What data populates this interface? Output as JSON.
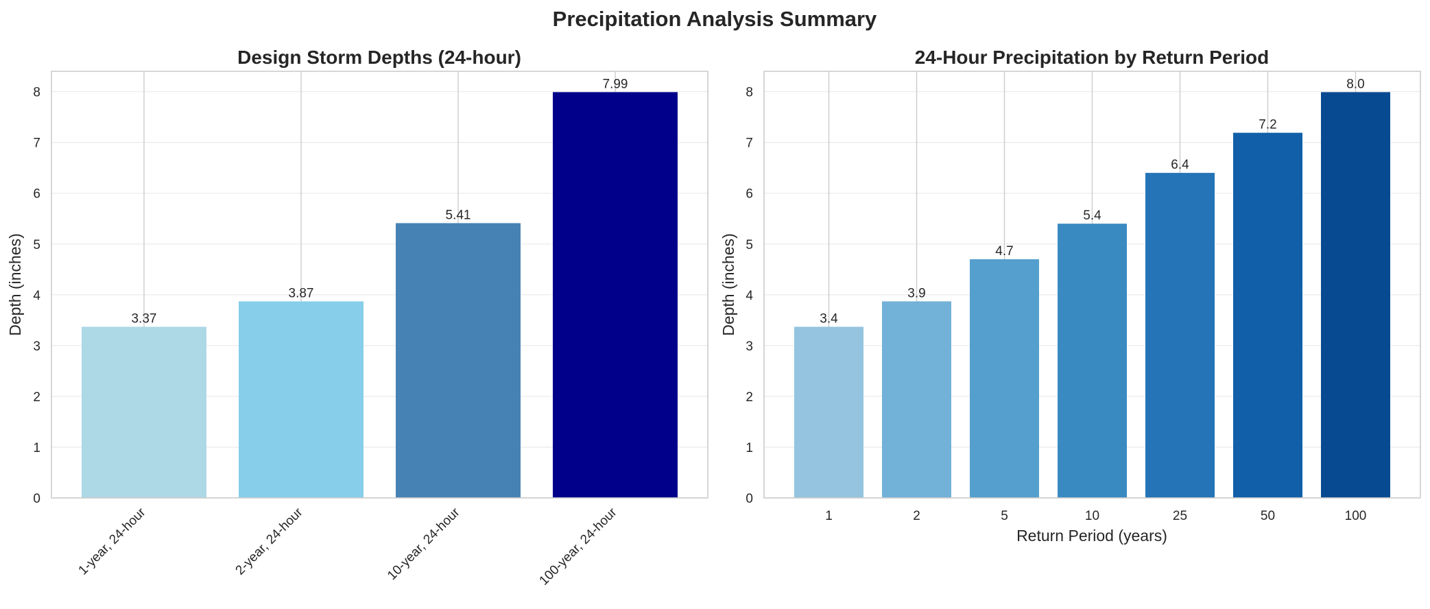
{
  "figure_title": "Precipitation Analysis Summary",
  "chart_data": [
    {
      "type": "bar",
      "title": "Design Storm Depths (24-hour)",
      "xlabel": "",
      "ylabel": "Depth (inches)",
      "categories": [
        "1-year, 24-hour",
        "2-year, 24-hour",
        "10-year, 24-hour",
        "100-year, 24-hour"
      ],
      "values": [
        3.37,
        3.87,
        5.41,
        7.99
      ],
      "value_labels": [
        "3.37",
        "3.87",
        "5.41",
        "7.99"
      ],
      "colors": [
        "#add8e6",
        "#87ceeb",
        "#4682b4",
        "#00008b"
      ],
      "ylim": [
        0,
        8.4
      ],
      "yticks": [
        0,
        1,
        2,
        3,
        4,
        5,
        6,
        7,
        8
      ],
      "grid": true,
      "xtick_rotation": 45
    },
    {
      "type": "bar",
      "title": "24-Hour Precipitation by Return Period",
      "xlabel": "Return Period (years)",
      "ylabel": "Depth (inches)",
      "categories": [
        "1",
        "2",
        "5",
        "10",
        "25",
        "50",
        "100"
      ],
      "values": [
        3.37,
        3.87,
        4.7,
        5.4,
        6.4,
        7.19,
        7.99
      ],
      "value_labels": [
        "3.4",
        "3.9",
        "4.7",
        "5.4",
        "6.4",
        "7.2",
        "8.0"
      ],
      "colors": [
        "#94c4df",
        "#72b1d8",
        "#549fcd",
        "#3a8ac2",
        "#2474b7",
        "#115fa8",
        "#084a91"
      ],
      "ylim": [
        0,
        8.4
      ],
      "yticks": [
        0,
        1,
        2,
        3,
        4,
        5,
        6,
        7,
        8
      ],
      "grid": true,
      "xtick_rotation": 0
    }
  ]
}
